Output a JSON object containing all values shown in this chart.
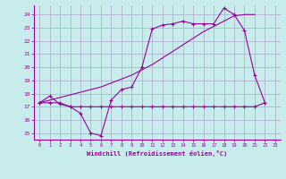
{
  "xlabel": "Windchill (Refroidissement éolien,°C)",
  "background_color": "#c8ecec",
  "line_color": "#990099",
  "grid_color": "#aaaacc",
  "line1_x": [
    0,
    1,
    2,
    3,
    4,
    5,
    6,
    7,
    8,
    9,
    10,
    11,
    12,
    13,
    14,
    15,
    16,
    17,
    18,
    19,
    20,
    21,
    22
  ],
  "line1_y": [
    17.3,
    17.8,
    17.2,
    17.0,
    16.5,
    15.0,
    14.8,
    17.5,
    18.3,
    18.5,
    20.0,
    22.9,
    23.2,
    23.3,
    23.5,
    23.3,
    23.3,
    23.3,
    24.5,
    24.0,
    22.8,
    19.4,
    17.3
  ],
  "line2_x": [
    0,
    1,
    2,
    3,
    4,
    5,
    6,
    7,
    8,
    9,
    10,
    11,
    12,
    13,
    14,
    15,
    16,
    17,
    18,
    19,
    20,
    21,
    22
  ],
  "line2_y": [
    17.3,
    17.3,
    17.3,
    17.0,
    17.0,
    17.0,
    17.0,
    17.0,
    17.0,
    17.0,
    17.0,
    17.0,
    17.0,
    17.0,
    17.0,
    17.0,
    17.0,
    17.0,
    17.0,
    17.0,
    17.0,
    17.0,
    17.3
  ],
  "line3_x": [
    0,
    1,
    2,
    3,
    4,
    5,
    6,
    7,
    8,
    9,
    10,
    11,
    12,
    13,
    14,
    15,
    16,
    17,
    18,
    19,
    20,
    21
  ],
  "line3_y": [
    17.3,
    17.5,
    17.7,
    17.9,
    18.1,
    18.3,
    18.5,
    18.8,
    19.1,
    19.4,
    19.8,
    20.2,
    20.7,
    21.2,
    21.7,
    22.2,
    22.7,
    23.1,
    23.5,
    23.9,
    24.0,
    24.0
  ],
  "xlim": [
    -0.5,
    23.5
  ],
  "ylim": [
    14.5,
    24.7
  ],
  "yticks": [
    15,
    16,
    17,
    18,
    19,
    20,
    21,
    22,
    23,
    24
  ],
  "xticks": [
    0,
    1,
    2,
    3,
    4,
    5,
    6,
    7,
    8,
    9,
    10,
    11,
    12,
    13,
    14,
    15,
    16,
    17,
    18,
    19,
    20,
    21,
    22,
    23
  ]
}
